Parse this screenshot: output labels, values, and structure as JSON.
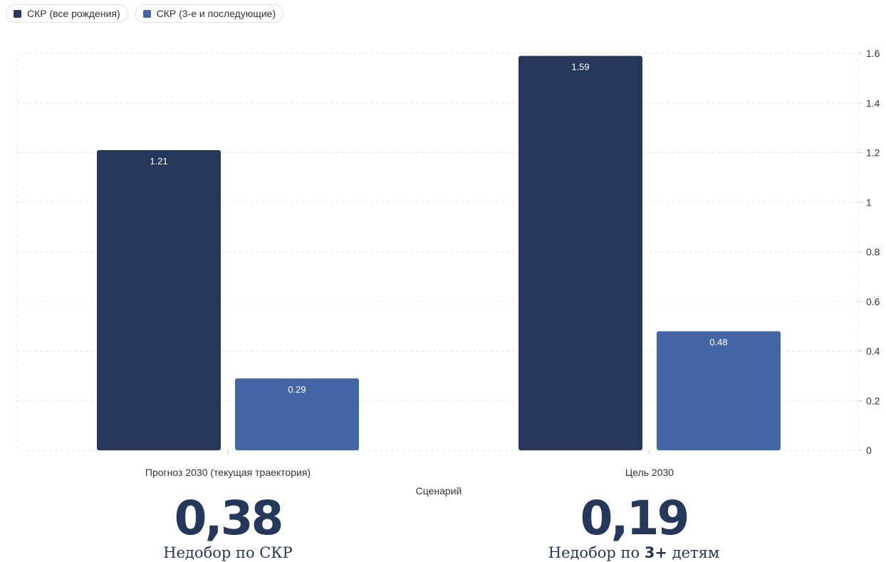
{
  "chart_data": {
    "type": "bar",
    "categories": [
      "Прогноз 2030 (текущая траектория)",
      "Цель 2030"
    ],
    "series": [
      {
        "name": "СКР (все рождения)",
        "color": "#25375b",
        "values": [
          1.21,
          1.59
        ]
      },
      {
        "name": "СКР (3-е и последующие)",
        "color": "#4466a4",
        "values": [
          0.29,
          0.48
        ]
      }
    ],
    "title": "",
    "xlabel": "Сценарий",
    "ylabel": "",
    "ylim": [
      0,
      1.6
    ],
    "yticks": [
      0,
      0.2,
      0.4,
      0.6,
      0.8,
      1,
      1.2,
      1.4,
      1.6
    ],
    "y_axis_position": "right",
    "grid": true,
    "legend_position": "top-left"
  },
  "kpis": [
    {
      "value": "0,38",
      "caption": "Недобор по СКР"
    },
    {
      "value": "0,19",
      "caption_before": "Недобор по ",
      "caption_strong": "3+",
      "caption_after": " детям"
    }
  ]
}
